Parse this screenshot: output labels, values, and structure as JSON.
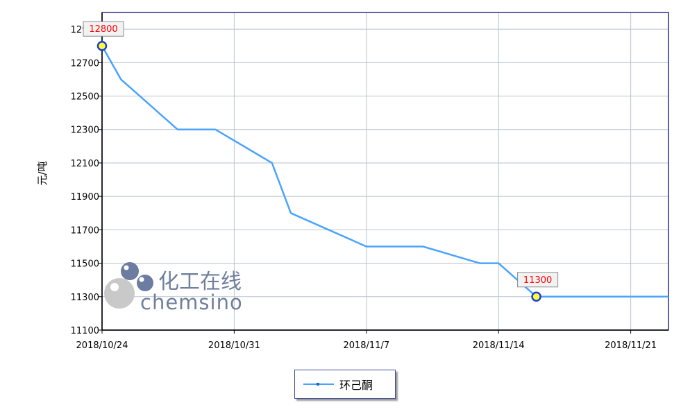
{
  "chart_data": {
    "type": "line",
    "title": "",
    "xlabel": "",
    "ylabel": "元/吨",
    "x_tick_labels": [
      "2018/10/24",
      "2018/10/31",
      "2018/11/7",
      "2018/11/14",
      "2018/11/21"
    ],
    "x_ticks": [
      "2018-10-24",
      "2018-10-31",
      "2018-11-07",
      "2018-11-14",
      "2018-11-21"
    ],
    "xlim": [
      "2018-10-24",
      "2018-11-23"
    ],
    "ylim": [
      11100,
      13000
    ],
    "y_ticks": [
      11100,
      11300,
      11500,
      11700,
      11900,
      12100,
      12300,
      12500,
      12700,
      12900
    ],
    "grid": true,
    "legend_position": "bottom",
    "series": [
      {
        "name": "环己酮",
        "color": "#4aa3ff",
        "points": [
          {
            "x": "2018-10-24",
            "y": 12800
          },
          {
            "x": "2018-10-25",
            "y": 12600
          },
          {
            "x": "2018-10-28",
            "y": 12300
          },
          {
            "x": "2018-10-30",
            "y": 12300
          },
          {
            "x": "2018-11-02",
            "y": 12100
          },
          {
            "x": "2018-11-03",
            "y": 11800
          },
          {
            "x": "2018-11-07",
            "y": 11600
          },
          {
            "x": "2018-11-10",
            "y": 11600
          },
          {
            "x": "2018-11-13",
            "y": 11500
          },
          {
            "x": "2018-11-14",
            "y": 11500
          },
          {
            "x": "2018-11-16",
            "y": 11300
          },
          {
            "x": "2018-11-23",
            "y": 11300
          }
        ]
      }
    ],
    "annotations": [
      {
        "x": "2018-10-24",
        "y": 12800,
        "label": "12800"
      },
      {
        "x": "2018-11-16",
        "y": 11300,
        "label": "11300"
      }
    ]
  },
  "watermark": {
    "cn": "化工在线",
    "en": "chemsino"
  }
}
